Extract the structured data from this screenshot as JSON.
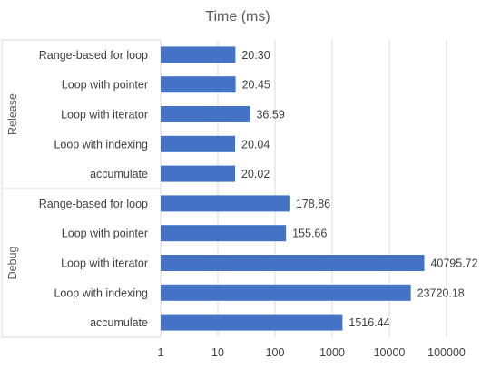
{
  "chart_data": {
    "type": "bar",
    "orientation": "horizontal",
    "title": "Time (ms)",
    "x_scale": "log",
    "xlim": [
      1,
      100000
    ],
    "x_ticks": [
      "1",
      "10",
      "100",
      "1000",
      "10000",
      "100000"
    ],
    "grid": true,
    "bar_color": "#4472C4",
    "groups": [
      {
        "name": "Release",
        "categories": [
          "Range-based for loop",
          "Loop with pointer",
          "Loop with iterator",
          "Loop with indexing",
          "accumulate"
        ],
        "values": [
          20.3,
          20.45,
          36.59,
          20.04,
          20.02
        ],
        "labels": [
          "20.30",
          "20.45",
          "36.59",
          "20.04",
          "20.02"
        ]
      },
      {
        "name": "Debug",
        "categories": [
          "Range-based for loop",
          "Loop with pointer",
          "Loop with iterator",
          "Loop with indexing",
          "accumulate"
        ],
        "values": [
          178.86,
          155.66,
          40795.72,
          23720.18,
          1516.44
        ],
        "labels": [
          "178.86",
          "155.66",
          "40795.72",
          "23720.18",
          "1516.44"
        ]
      }
    ]
  }
}
